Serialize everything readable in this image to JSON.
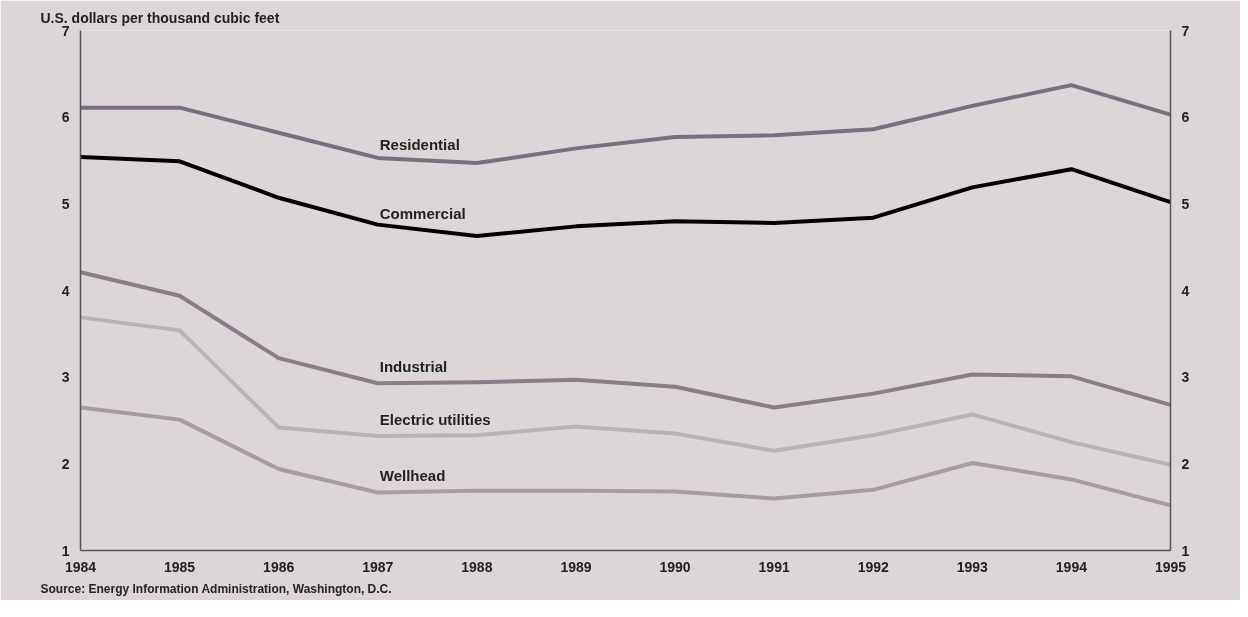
{
  "chart_data": {
    "type": "line",
    "ylabel": "U.S. dollars per thousand cubic feet",
    "x": [
      1984,
      1985,
      1986,
      1987,
      1988,
      1989,
      1990,
      1991,
      1992,
      1993,
      1994,
      1995
    ],
    "xlim": [
      1984,
      1995
    ],
    "xticks": [
      1984,
      1985,
      1986,
      1987,
      1988,
      1989,
      1990,
      1991,
      1992,
      1993,
      1994,
      1995
    ],
    "ylim": [
      1,
      7
    ],
    "yticks": [
      1,
      2,
      3,
      4,
      5,
      6,
      7
    ],
    "y2lim": [
      1,
      7
    ],
    "y2ticks": [
      1,
      2,
      3,
      4,
      5,
      6,
      7
    ],
    "grid": false,
    "legend": false,
    "marker": "none",
    "line_style": "solid",
    "series": [
      {
        "name": "Residential",
        "color": "#7b6e7e",
        "values": [
          6.11,
          6.11,
          5.82,
          5.53,
          5.47,
          5.64,
          5.77,
          5.79,
          5.86,
          6.13,
          6.37,
          6.03
        ]
      },
      {
        "name": "Commercial",
        "color": "#000000",
        "values": [
          5.54,
          5.49,
          5.07,
          4.76,
          4.63,
          4.74,
          4.8,
          4.78,
          4.84,
          5.19,
          5.4,
          5.02
        ]
      },
      {
        "name": "Industrial",
        "color": "#8a7d89",
        "values": [
          4.21,
          3.94,
          3.22,
          2.93,
          2.94,
          2.97,
          2.89,
          2.65,
          2.81,
          3.03,
          3.01,
          2.68
        ]
      },
      {
        "name": "Electric utilities",
        "color": "#b5b5b5",
        "values": [
          3.69,
          3.54,
          2.42,
          2.32,
          2.33,
          2.43,
          2.35,
          2.15,
          2.33,
          2.57,
          2.25,
          1.99
        ]
      },
      {
        "name": "Wellhead",
        "color": "#a99ba4",
        "values": [
          2.65,
          2.51,
          1.94,
          1.67,
          1.69,
          1.69,
          1.68,
          1.6,
          1.7,
          2.01,
          1.82,
          1.52
        ]
      }
    ],
    "annotations": [
      "Source: Energy Information Administration, Washington, D.C."
    ]
  }
}
